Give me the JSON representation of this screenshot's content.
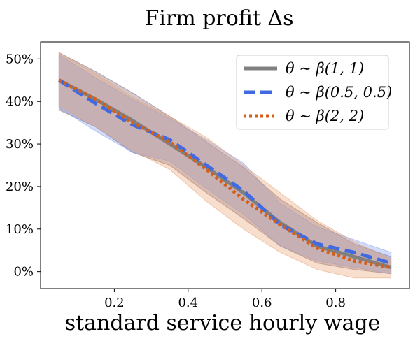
{
  "chart_data": {
    "type": "line",
    "title": "Firm profit Δs",
    "xlabel": "standard service hourly wage",
    "ylabel": "",
    "xlim": [
      0.0,
      1.0
    ],
    "ylim": [
      -0.04,
      0.54
    ],
    "xticks": [
      {
        "value": 0.2,
        "label": "0.2"
      },
      {
        "value": 0.4,
        "label": "0.4"
      },
      {
        "value": 0.6,
        "label": "0.6"
      },
      {
        "value": 0.8,
        "label": "0.8"
      }
    ],
    "yticks": [
      {
        "value": 0.0,
        "label": "0%"
      },
      {
        "value": 0.1,
        "label": "10%"
      },
      {
        "value": 0.2,
        "label": "20%"
      },
      {
        "value": 0.3,
        "label": "30%"
      },
      {
        "value": 0.4,
        "label": "40%"
      },
      {
        "value": 0.5,
        "label": "50%"
      }
    ],
    "grid": false,
    "legend_position": "top-right",
    "x": [
      0.05,
      0.15,
      0.25,
      0.35,
      0.45,
      0.55,
      0.65,
      0.75,
      0.85,
      0.95
    ],
    "series": [
      {
        "name": "θ ∼ β(1, 1)",
        "color": "#808080",
        "dash": "solid",
        "values": [
          0.45,
          0.405,
          0.355,
          0.3,
          0.245,
          0.185,
          0.115,
          0.06,
          0.035,
          0.01
        ],
        "band_low": [
          0.38,
          0.34,
          0.28,
          0.25,
          0.185,
          0.125,
          0.06,
          0.02,
          0.005,
          -0.005
        ],
        "band_high": [
          0.515,
          0.47,
          0.42,
          0.365,
          0.305,
          0.245,
          0.17,
          0.115,
          0.065,
          0.035
        ],
        "band_color": "#7a6270"
      },
      {
        "name": "θ ∼ β(0.5, 0.5)",
        "color": "#4169e1",
        "dash": "dashed",
        "values": [
          0.45,
          0.395,
          0.345,
          0.31,
          0.25,
          0.19,
          0.11,
          0.065,
          0.045,
          0.02
        ],
        "band_low": [
          0.385,
          0.33,
          0.28,
          0.26,
          0.195,
          0.135,
          0.06,
          0.025,
          0.01,
          -0.005
        ],
        "band_high": [
          0.51,
          0.455,
          0.405,
          0.36,
          0.31,
          0.255,
          0.16,
          0.105,
          0.075,
          0.045
        ],
        "band_color": "#7f9af0"
      },
      {
        "name": "θ ∼ β(2, 2)",
        "color": "#d2601a",
        "dash": "dotted",
        "values": [
          0.45,
          0.405,
          0.35,
          0.305,
          0.24,
          0.17,
          0.11,
          0.055,
          0.025,
          0.01
        ],
        "band_low": [
          0.39,
          0.34,
          0.285,
          0.24,
          0.165,
          0.1,
          0.045,
          0.005,
          -0.015,
          -0.015
        ],
        "band_high": [
          0.515,
          0.465,
          0.41,
          0.365,
          0.315,
          0.25,
          0.185,
          0.12,
          0.07,
          0.03
        ],
        "band_color": "#e9a070"
      }
    ]
  }
}
